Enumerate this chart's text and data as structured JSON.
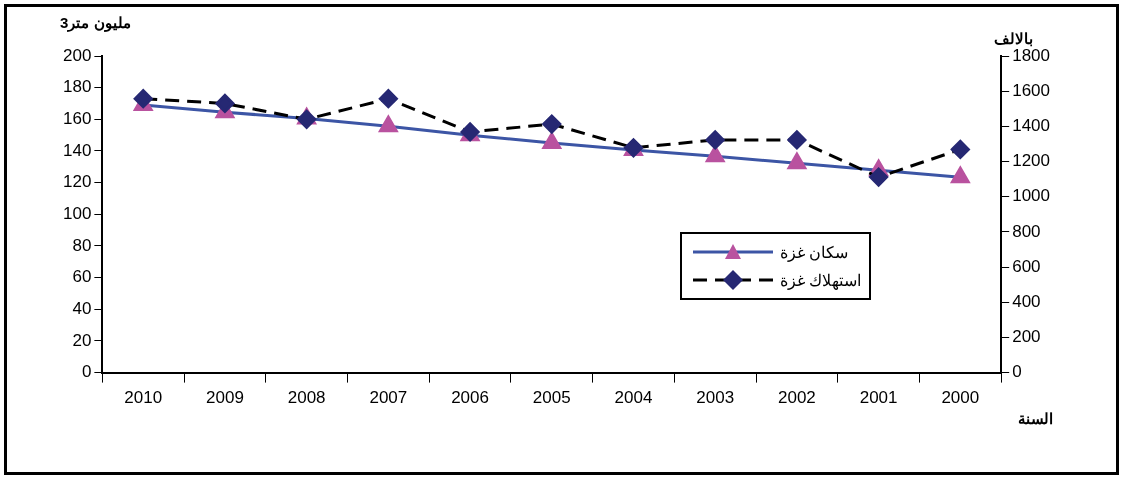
{
  "chart_data": {
    "type": "line",
    "ylabel": "مليون متر3",
    "y2label": "بالالف",
    "xlabel": "السنة",
    "categories": [
      "2010",
      "2009",
      "2008",
      "2007",
      "2006",
      "2005",
      "2004",
      "2003",
      "2002",
      "2001",
      "2000"
    ],
    "ylim": [
      0,
      200
    ],
    "yticks": [
      0,
      20,
      40,
      60,
      80,
      100,
      120,
      140,
      160,
      180,
      200
    ],
    "y2lim": [
      0,
      1800
    ],
    "y2ticks": [
      0,
      200,
      400,
      600,
      800,
      1000,
      1200,
      1400,
      1600,
      1800
    ],
    "grid": false,
    "legend": "right",
    "series": [
      {
        "name": "سكان غزة",
        "color": "#3c55a5",
        "colors": [
          "#b9529f",
          "#b9529f",
          "#b9529f",
          "#b9529f",
          "#b9529f",
          "#b9529f",
          "#b9529f",
          "#b9529f",
          "#b9529f",
          "#b9529f",
          "#b9529f"
        ],
        "marker": "triangle",
        "line_style": "solid",
        "axis": "y2",
        "values": [
          1521,
          1480,
          1445,
          1400,
          1350,
          1305,
          1265,
          1230,
          1190,
          1150,
          1110
        ]
      },
      {
        "name": "استهلاك غزة",
        "color": "#000000",
        "colors": [
          "#262873",
          "#262873",
          "#262873",
          "#262873",
          "#262873",
          "#262873",
          "#262873",
          "#262873",
          "#262873",
          "#262873",
          "#262873"
        ],
        "marker": "diamond",
        "line_style": "dashed",
        "values": [
          173,
          170,
          160,
          173,
          152,
          157,
          142,
          147,
          147,
          123.5,
          141
        ]
      }
    ]
  }
}
